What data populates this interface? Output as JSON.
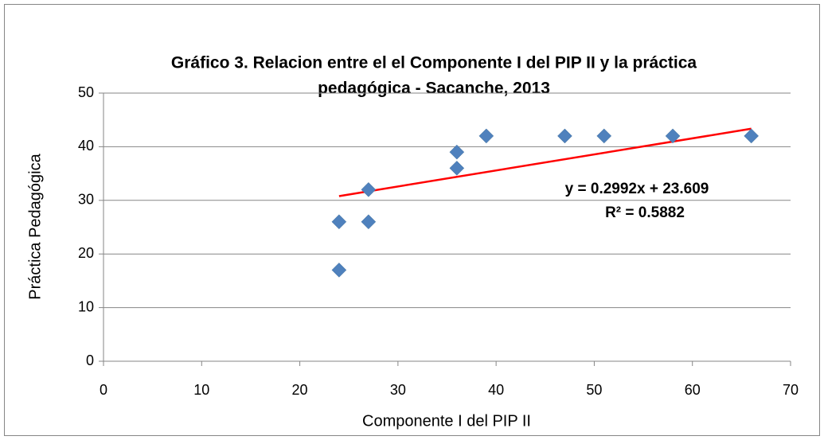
{
  "chart_data": {
    "type": "scatter",
    "title": [
      "Gráfico 3. Relacion entre el el Componente I del PIP II y la práctica",
      "pedagógica - Sacanche, 2013"
    ],
    "x_label": "Componente I del PIP II",
    "y_label": "Práctica Pedagógica",
    "x": [
      24,
      24,
      27,
      27,
      36,
      36,
      39,
      47,
      51,
      58,
      66
    ],
    "values": [
      26,
      17,
      32,
      26,
      39,
      36,
      42,
      42,
      42,
      42,
      42
    ],
    "color": "#4f81bd",
    "xlim": [
      0,
      70
    ],
    "xticks": [
      0,
      10,
      20,
      30,
      40,
      50,
      60,
      70
    ],
    "ylim": [
      0,
      50
    ],
    "yticks": [
      0,
      10,
      20,
      30,
      40,
      50
    ],
    "grid": true,
    "trendline": {
      "slope": 0.2992,
      "intercept": 23.609,
      "x": [
        24,
        66
      ],
      "color": "#ff0000",
      "equation": "y = 0.2992x + 23.609",
      "r2": "R² = 0.5882"
    }
  }
}
